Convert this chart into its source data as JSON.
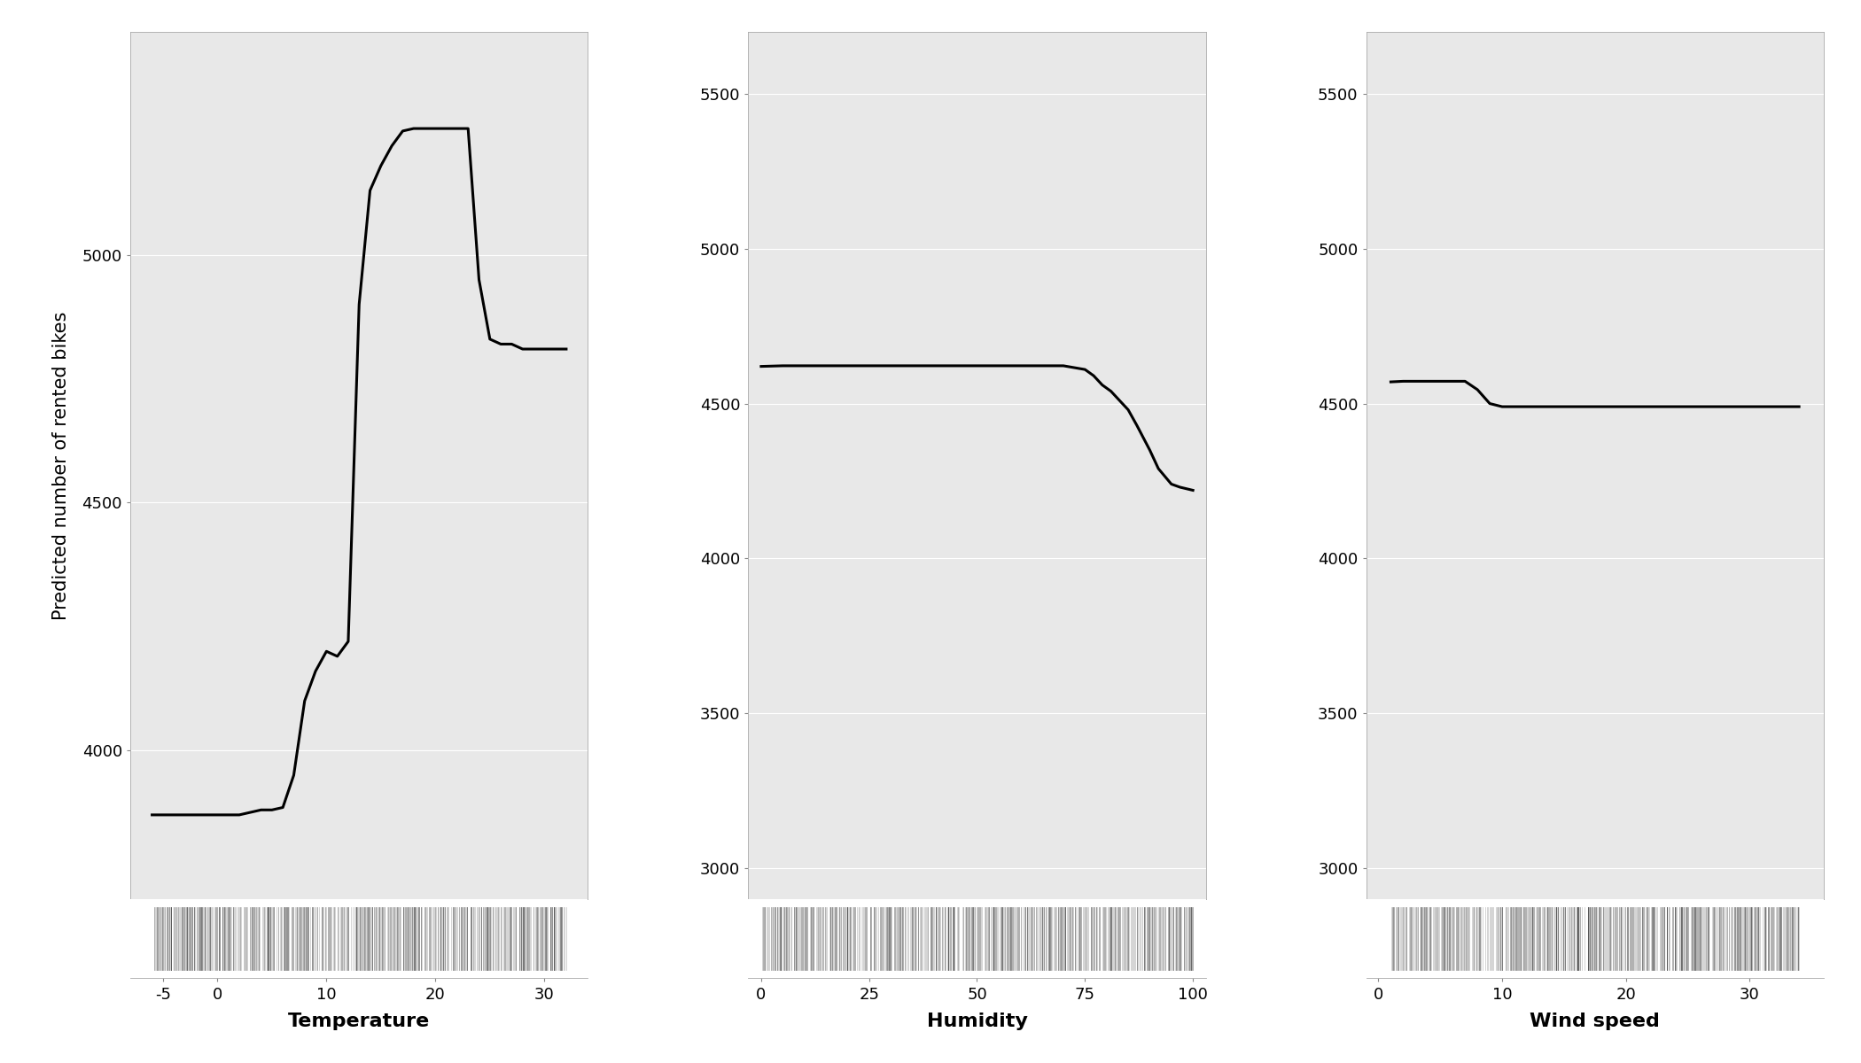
{
  "temp_x": [
    -6,
    -5,
    -4,
    -3,
    -2,
    -1,
    0,
    1,
    2,
    3,
    4,
    5,
    6,
    7,
    8,
    9,
    10,
    11,
    12,
    13,
    14,
    15,
    16,
    17,
    18,
    19,
    20,
    21,
    22,
    23,
    24,
    25,
    26,
    27,
    28,
    29,
    30,
    31,
    32
  ],
  "temp_y": [
    3870,
    3870,
    3870,
    3870,
    3870,
    3870,
    3870,
    3870,
    3870,
    3875,
    3880,
    3880,
    3885,
    3950,
    4100,
    4160,
    4200,
    4190,
    4220,
    4900,
    5130,
    5180,
    5220,
    5250,
    5255,
    5255,
    5255,
    5255,
    5255,
    5255,
    4950,
    4830,
    4820,
    4820,
    4810,
    4810,
    4810,
    4810,
    4810
  ],
  "hum_x": [
    0,
    5,
    10,
    15,
    20,
    25,
    30,
    35,
    40,
    45,
    50,
    55,
    60,
    65,
    70,
    75,
    77,
    79,
    81,
    83,
    85,
    87,
    90,
    92,
    95,
    97,
    100
  ],
  "hum_y": [
    4620,
    4622,
    4622,
    4622,
    4622,
    4622,
    4622,
    4622,
    4622,
    4622,
    4622,
    4622,
    4622,
    4622,
    4622,
    4610,
    4590,
    4560,
    4540,
    4510,
    4480,
    4430,
    4350,
    4290,
    4240,
    4230,
    4220
  ],
  "wind_x": [
    1,
    2,
    3,
    4,
    5,
    6,
    7,
    8,
    9,
    10,
    11,
    12,
    13,
    14,
    15,
    16,
    17,
    18,
    19,
    20,
    21,
    22,
    23,
    24,
    25,
    26,
    27,
    28,
    29,
    30,
    31,
    32,
    33,
    34
  ],
  "wind_y": [
    4570,
    4572,
    4572,
    4572,
    4572,
    4572,
    4572,
    4545,
    4500,
    4490,
    4490,
    4490,
    4490,
    4490,
    4490,
    4490,
    4490,
    4490,
    4490,
    4490,
    4490,
    4490,
    4490,
    4490,
    4490,
    4490,
    4490,
    4490,
    4490,
    4490,
    4490,
    4490,
    4490,
    4490
  ],
  "temp_xlim": [
    -8,
    34
  ],
  "temp_ylim": [
    3700,
    5450
  ],
  "temp_yticks": [
    4000,
    4500,
    5000
  ],
  "temp_xticks": [
    -5,
    0,
    10,
    20,
    30
  ],
  "hum_xlim": [
    -3,
    103
  ],
  "hum_ylim": [
    2900,
    5700
  ],
  "hum_yticks": [
    3000,
    3500,
    4000,
    4500,
    5000,
    5500
  ],
  "hum_xticks": [
    0,
    25,
    50,
    75,
    100
  ],
  "wind_xlim": [
    -1,
    36
  ],
  "wind_ylim": [
    2900,
    5700
  ],
  "wind_yticks": [
    3000,
    3500,
    4000,
    4500,
    5000,
    5500
  ],
  "wind_xticks": [
    0,
    10,
    20,
    30
  ],
  "ylabel": "Predicted number of rented bikes",
  "xlabel_temp": "Temperature",
  "xlabel_hum": "Humidity",
  "xlabel_wind": "Wind speed",
  "line_color": "#000000",
  "line_width": 2.2,
  "bg_color": "#e8e8e8",
  "grid_color": "#ffffff",
  "rug_color": "#111111",
  "rug_alpha": 0.25,
  "rug_linewidth": 0.5
}
